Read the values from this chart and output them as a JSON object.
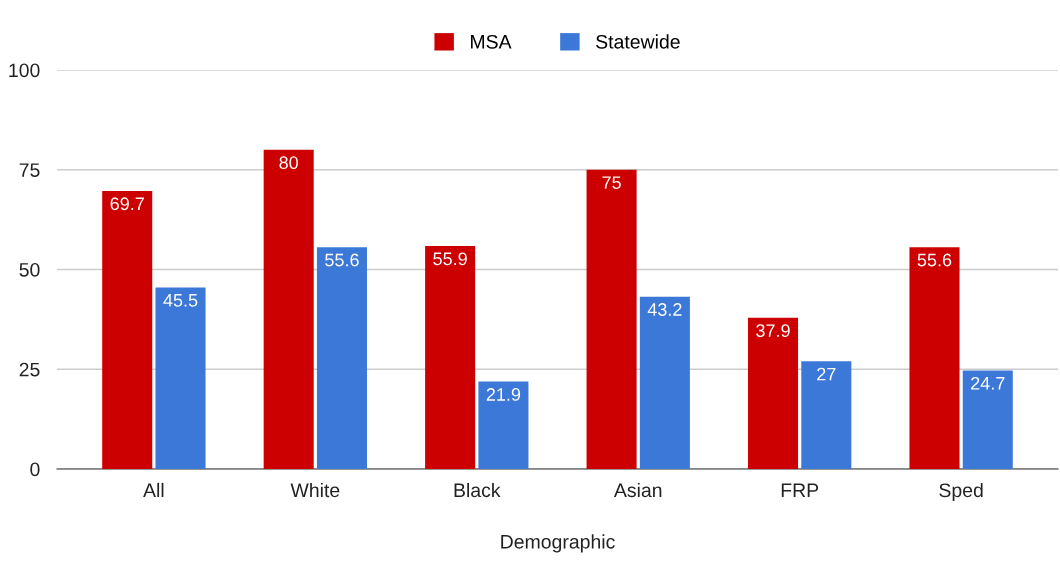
{
  "chart_data": {
    "type": "bar",
    "xlabel": "Demographic",
    "categories": [
      "All",
      "White",
      "Black",
      "Asian",
      "FRP",
      "Sped"
    ],
    "series": [
      {
        "name": "MSA",
        "color": "#cc0000",
        "values": [
          69.7,
          80,
          55.9,
          75,
          37.9,
          55.6
        ]
      },
      {
        "name": "Statewide",
        "color": "#3c78d8",
        "values": [
          45.5,
          55.6,
          21.9,
          43.2,
          27,
          24.7
        ]
      }
    ],
    "ylim": [
      0,
      100
    ],
    "yticks": [
      0,
      25,
      50,
      75,
      100
    ],
    "grid": "y",
    "legend": "top",
    "data_labels": true
  }
}
